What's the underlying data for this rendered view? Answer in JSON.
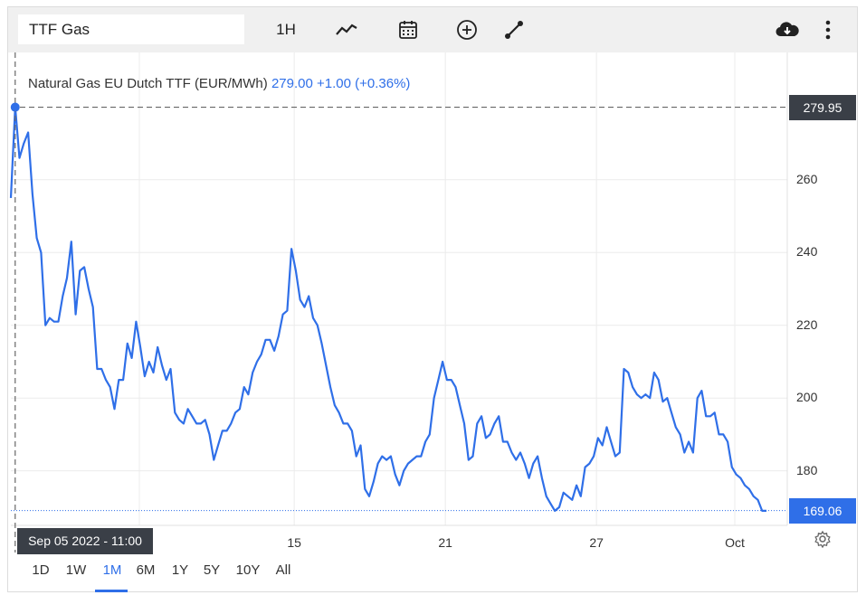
{
  "toolbar": {
    "symbol": "TTF Gas",
    "interval": "1H"
  },
  "legend": {
    "name": "Natural Gas EU Dutch TTF (EUR/MWh)",
    "price": "279.00",
    "change": "+1.00 (+0.36%)"
  },
  "crosshair": {
    "price_label": "279.95",
    "date_label": "Sep 05 2022 - 11:00"
  },
  "last_price_label": "169.06",
  "x_tick_labels": [
    "Sep",
    "15",
    "21",
    "27",
    "Oct"
  ],
  "y_tick_labels": [
    "260",
    "240",
    "220",
    "200",
    "180"
  ],
  "ranges": [
    "1D",
    "1W",
    "1M",
    "6M",
    "1Y",
    "5Y",
    "10Y",
    "All"
  ],
  "active_range": "1M",
  "colors": {
    "line": "#2f6fe8",
    "crosshair_tag": "#3a3f47",
    "last_price_tag": "#2f6fe8"
  },
  "icons": [
    "line-style-icon",
    "calendar-icon",
    "add-indicator-icon",
    "draw-tool-icon",
    "download-icon",
    "more-icon",
    "settings-icon"
  ],
  "chart_data": {
    "type": "line",
    "title": "",
    "ylim": [
      165,
      295
    ],
    "yticks": [
      260,
      240,
      220,
      200,
      180
    ],
    "xticks": [
      {
        "label": "Sep",
        "t": 0.2
      },
      {
        "label": "15",
        "t": 0.405
      },
      {
        "label": "21",
        "t": 0.605
      },
      {
        "label": "27",
        "t": 0.805
      },
      {
        "label": "Oct",
        "t": 1.0
      }
    ],
    "grid": true,
    "crosshair_value": 279.95,
    "last_value": 169.06,
    "series": [
      {
        "values": [
          255,
          280,
          266,
          270,
          273,
          256,
          244,
          240,
          220,
          222,
          221,
          221,
          228,
          233,
          243,
          223,
          235,
          236,
          230,
          225,
          208,
          208,
          205,
          203,
          197,
          205,
          205,
          215,
          211,
          221,
          214,
          206,
          210,
          207,
          214,
          209,
          205,
          208,
          196,
          194,
          193,
          197,
          195,
          193,
          193,
          194,
          190,
          183,
          187,
          191,
          191,
          193,
          196,
          197,
          203,
          201,
          207,
          210,
          212,
          216,
          216,
          213,
          217,
          223,
          224,
          241,
          235,
          227,
          225,
          228,
          222,
          220,
          215,
          209,
          203,
          198,
          196,
          193,
          193,
          191,
          184,
          187,
          175,
          173,
          177,
          182,
          184,
          183,
          184,
          179,
          176,
          180,
          182,
          183,
          184,
          184,
          188,
          190,
          200,
          205,
          210,
          205,
          205,
          203,
          198,
          193,
          183,
          184,
          193,
          195,
          189,
          190,
          193,
          195,
          188,
          188,
          185,
          183,
          185,
          182,
          178,
          182,
          184,
          178,
          173,
          171,
          169,
          170,
          174,
          173,
          172,
          176,
          173,
          181,
          182,
          184,
          189,
          187,
          192,
          188,
          184,
          185,
          208,
          207,
          203,
          201,
          200,
          201,
          200,
          207,
          205,
          199,
          200,
          196,
          192,
          190,
          185,
          188,
          185,
          200,
          202,
          195,
          195,
          196,
          190,
          190,
          188,
          181,
          179,
          178,
          176,
          175,
          173,
          172,
          169,
          169
        ]
      }
    ]
  }
}
